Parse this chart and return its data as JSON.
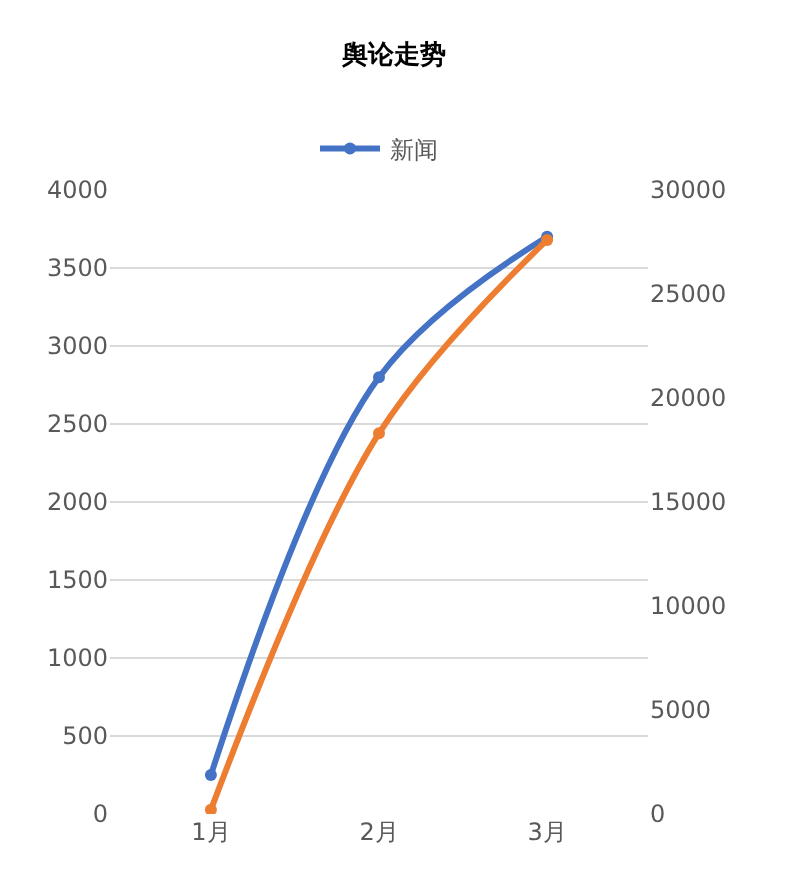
{
  "chart_data": {
    "type": "line",
    "title": "舆论走势",
    "categories": [
      "1月",
      "2月",
      "3月"
    ],
    "series": [
      {
        "name": "新闻",
        "color": "#4472c4",
        "values": [
          250,
          2800,
          3700
        ]
      },
      {
        "color": "#ed7d31",
        "values": [
          200,
          18300,
          27600
        ],
        "axis": "y2"
      }
    ],
    "ylim": [
      0,
      4000
    ],
    "yticks": [
      0,
      500,
      1000,
      1500,
      2000,
      2500,
      3000,
      3500,
      4000
    ],
    "y2lim": [
      0,
      30000
    ],
    "y2ticks": [
      0,
      5000,
      10000,
      15000,
      20000,
      25000,
      30000
    ],
    "grid": "y",
    "legend": "top",
    "marker": "circle"
  }
}
